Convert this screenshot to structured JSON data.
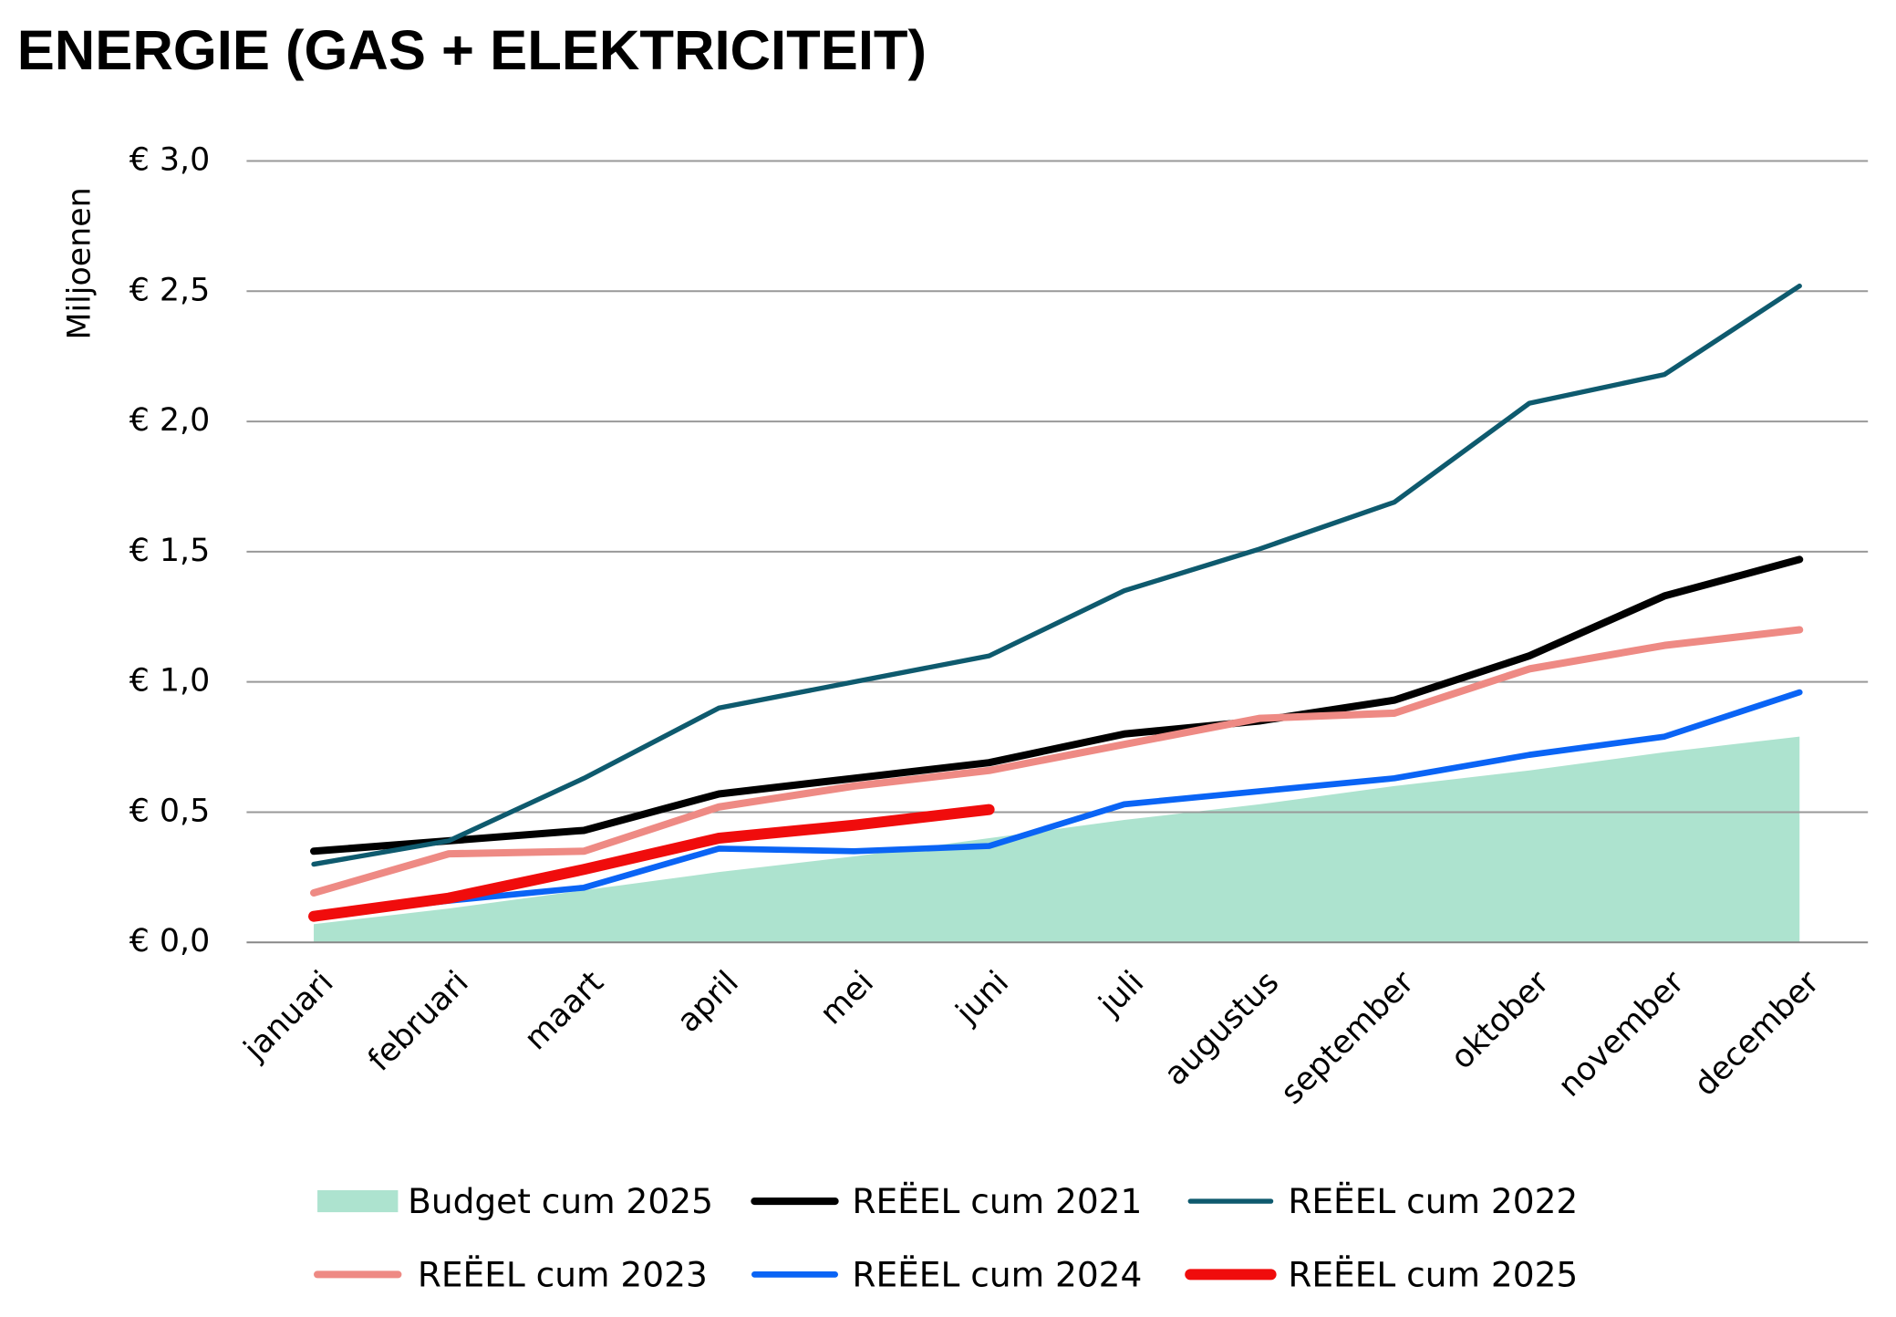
{
  "chart_data": {
    "type": "line",
    "title": "ENERGIE (GAS + ELEKTRICITEIT)",
    "y_label": "Miljoenen",
    "categories": [
      "januari",
      "februari",
      "maart",
      "april",
      "mei",
      "juni",
      "juli",
      "augustus",
      "september",
      "oktober",
      "november",
      "december"
    ],
    "series": [
      {
        "name": "Budget cum 2025",
        "type": "area",
        "color": "#ade3cf",
        "values": [
          0.07,
          0.13,
          0.2,
          0.27,
          0.33,
          0.4,
          0.47,
          0.53,
          0.6,
          0.66,
          0.73,
          0.79
        ]
      },
      {
        "name": "REËEL cum 2021",
        "color": "#000000",
        "values": [
          0.35,
          0.39,
          0.43,
          0.57,
          0.63,
          0.69,
          0.8,
          0.85,
          0.93,
          1.1,
          1.33,
          1.47
        ]
      },
      {
        "name": "REËEL cum 2022",
        "color": "#0e5a6e",
        "values": [
          0.3,
          0.39,
          0.63,
          0.9,
          1.0,
          1.1,
          1.35,
          1.51,
          1.69,
          2.07,
          2.18,
          2.52
        ]
      },
      {
        "name": "REËEL cum 2023",
        "color": "#ee8a84",
        "values": [
          0.19,
          0.34,
          0.35,
          0.52,
          0.6,
          0.66,
          0.76,
          0.86,
          0.88,
          1.05,
          1.14,
          1.2
        ]
      },
      {
        "name": "REËEL cum 2024",
        "color": "#0a64f5",
        "values": [
          0.1,
          0.16,
          0.21,
          0.36,
          0.35,
          0.37,
          0.53,
          0.58,
          0.63,
          0.72,
          0.79,
          0.96
        ]
      },
      {
        "name": "REËEL cum 2025",
        "color": "#f00c0c",
        "values": [
          0.1,
          0.17,
          0.28,
          0.4,
          0.45,
          0.51,
          null,
          null,
          null,
          null,
          null,
          null
        ]
      }
    ],
    "ylim": [
      0,
      3
    ],
    "yticks": [
      {
        "value": 0,
        "label": "€ 0,0"
      },
      {
        "value": 0.5,
        "label": "€ 0,5"
      },
      {
        "value": 1,
        "label": "€ 1,0"
      },
      {
        "value": 1.5,
        "label": "€ 1,5"
      },
      {
        "value": 2,
        "label": "€ 2,0"
      },
      {
        "value": 2.5,
        "label": "€ 2,5"
      },
      {
        "value": 3,
        "label": "€ 3,0"
      }
    ],
    "grid": true,
    "legend": "bottom"
  }
}
